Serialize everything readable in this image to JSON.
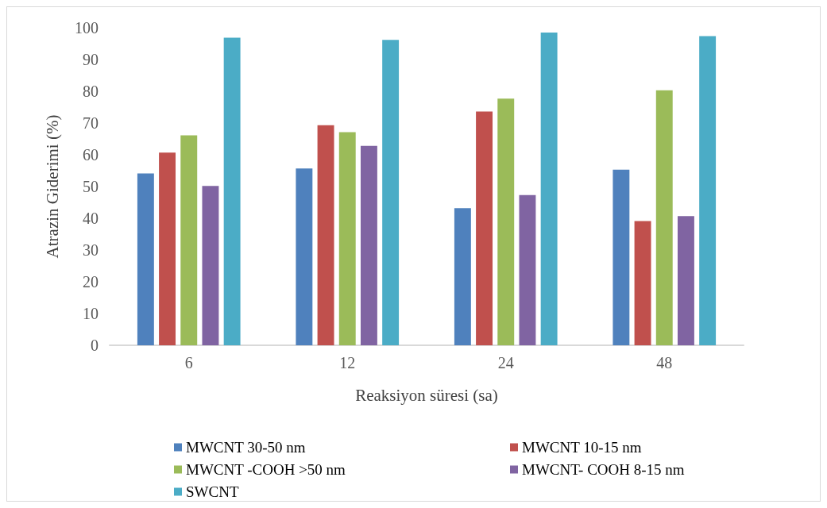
{
  "chart_data": {
    "type": "bar",
    "xlabel": "Reaksiyon süresi (sa)",
    "ylabel": "Atrazin Giderimi (%)",
    "categories": [
      "6",
      "12",
      "24",
      "48"
    ],
    "series": [
      {
        "name": "MWCNT 30-50 nm",
        "color": "#4f81bd",
        "values": [
          54.1,
          55.7,
          43.2,
          55.3
        ]
      },
      {
        "name": "MWCNT 10-15 nm",
        "color": "#c0504d",
        "values": [
          60.7,
          69.3,
          73.6,
          39.1
        ]
      },
      {
        "name": "MWCNT -COOH >50 nm",
        "color": "#9bbb59",
        "values": [
          66.1,
          67.1,
          77.7,
          80.3
        ]
      },
      {
        "name": "MWCNT- COOH 8-15 nm",
        "color": "#8064a2",
        "values": [
          50.2,
          62.8,
          47.3,
          40.7
        ]
      },
      {
        "name": "SWCNT",
        "color": "#4bacc6",
        "values": [
          96.9,
          96.2,
          98.5,
          97.4
        ]
      }
    ],
    "ylim": [
      0,
      100
    ],
    "yticks": [
      0,
      10,
      20,
      30,
      40,
      50,
      60,
      70,
      80,
      90,
      100
    ],
    "grid": false,
    "legend": "bottom"
  }
}
